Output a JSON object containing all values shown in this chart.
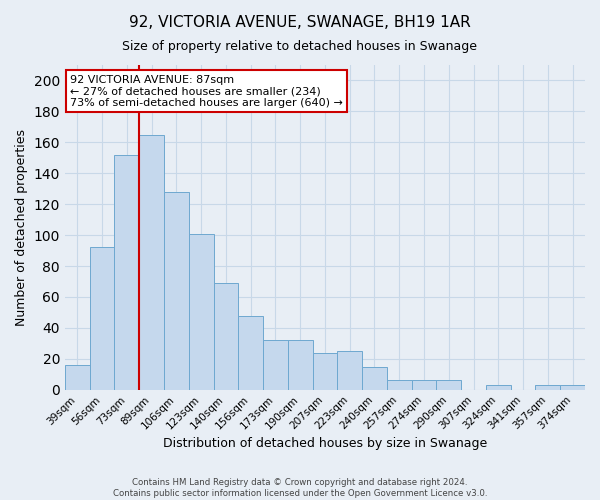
{
  "title": "92, VICTORIA AVENUE, SWANAGE, BH19 1AR",
  "subtitle": "Size of property relative to detached houses in Swanage",
  "xlabel": "Distribution of detached houses by size in Swanage",
  "ylabel": "Number of detached properties",
  "bar_labels": [
    "39sqm",
    "56sqm",
    "73sqm",
    "89sqm",
    "106sqm",
    "123sqm",
    "140sqm",
    "156sqm",
    "173sqm",
    "190sqm",
    "207sqm",
    "223sqm",
    "240sqm",
    "257sqm",
    "274sqm",
    "290sqm",
    "307sqm",
    "324sqm",
    "341sqm",
    "357sqm",
    "374sqm"
  ],
  "bar_heights": [
    16,
    92,
    152,
    165,
    128,
    101,
    69,
    48,
    32,
    32,
    24,
    25,
    15,
    6,
    6,
    6,
    0,
    3,
    0,
    3,
    3
  ],
  "bar_color": "#c5d8ed",
  "bar_edge_color": "#6ea8d0",
  "bar_width": 1.0,
  "ylim": [
    0,
    210
  ],
  "yticks": [
    0,
    20,
    40,
    60,
    80,
    100,
    120,
    140,
    160,
    180,
    200
  ],
  "vline_x_index": 3,
  "vline_color": "#cc0000",
  "annotation_title": "92 VICTORIA AVENUE: 87sqm",
  "annotation_line1": "← 27% of detached houses are smaller (234)",
  "annotation_line2": "73% of semi-detached houses are larger (640) →",
  "annotation_box_color": "#ffffff",
  "annotation_box_edge": "#cc0000",
  "grid_color": "#c8d8e8",
  "bg_color": "#e8eef5",
  "footer_line1": "Contains HM Land Registry data © Crown copyright and database right 2024.",
  "footer_line2": "Contains public sector information licensed under the Open Government Licence v3.0."
}
